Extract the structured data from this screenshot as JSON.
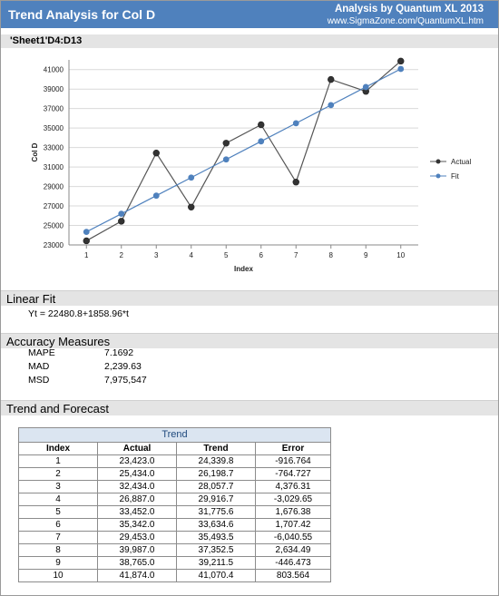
{
  "header": {
    "title": "Trend Analysis for Col D",
    "brand": "Analysis by Quantum XL 2013",
    "url": "www.SigmaZone.com/QuantumXL.htm"
  },
  "range": "'Sheet1'D4:D13",
  "chart_data": {
    "type": "line",
    "x_label": "Index",
    "y_label": "Col D",
    "x": [
      1,
      2,
      3,
      4,
      5,
      6,
      7,
      8,
      9,
      10
    ],
    "series": [
      {
        "name": "Actual",
        "color": "#555555",
        "marker_color": "#333333",
        "values": [
          23423,
          25434,
          32434,
          26887,
          33452,
          35342,
          29453,
          39987,
          38765,
          41874
        ]
      },
      {
        "name": "Fit",
        "color": "#4f81bd",
        "marker_color": "#4f81bd",
        "values": [
          24339.8,
          26198.7,
          28057.7,
          29916.7,
          31775.6,
          33634.6,
          35493.5,
          37352.5,
          39211.5,
          41070.4
        ]
      }
    ],
    "xlim": [
      0.5,
      10.5
    ],
    "xticks": [
      1,
      2,
      3,
      4,
      5,
      6,
      7,
      8,
      9,
      10
    ],
    "ylim": [
      23000,
      42000
    ],
    "yticks": [
      23000,
      25000,
      27000,
      29000,
      31000,
      33000,
      35000,
      37000,
      39000,
      41000
    ],
    "grid": true,
    "legend": "right"
  },
  "linear_fit": {
    "heading": "Linear Fit",
    "equation": "Yt = 22480.8+1858.96*t"
  },
  "accuracy": {
    "heading": "Accuracy Measures",
    "rows": [
      [
        "MAPE",
        "7.1692"
      ],
      [
        "MAD",
        "2,239.63"
      ],
      [
        "MSD",
        "7,975,547"
      ]
    ]
  },
  "trend_forecast": {
    "heading": "Trend and Forecast",
    "table": {
      "title": "Trend",
      "columns": [
        "Index",
        "Actual",
        "Trend",
        "Error"
      ],
      "rows": [
        [
          "1",
          "23,423.0",
          "24,339.8",
          "-916.764"
        ],
        [
          "2",
          "25,434.0",
          "26,198.7",
          "-764.727"
        ],
        [
          "3",
          "32,434.0",
          "28,057.7",
          "4,376.31"
        ],
        [
          "4",
          "26,887.0",
          "29,916.7",
          "-3,029.65"
        ],
        [
          "5",
          "33,452.0",
          "31,775.6",
          "1,676.38"
        ],
        [
          "6",
          "35,342.0",
          "33,634.6",
          "1,707.42"
        ],
        [
          "7",
          "29,453.0",
          "35,493.5",
          "-6,040.55"
        ],
        [
          "8",
          "39,987.0",
          "37,352.5",
          "2,634.49"
        ],
        [
          "9",
          "38,765.0",
          "39,211.5",
          "-446.473"
        ],
        [
          "10",
          "41,874.0",
          "41,070.4",
          "803.564"
        ]
      ]
    }
  }
}
